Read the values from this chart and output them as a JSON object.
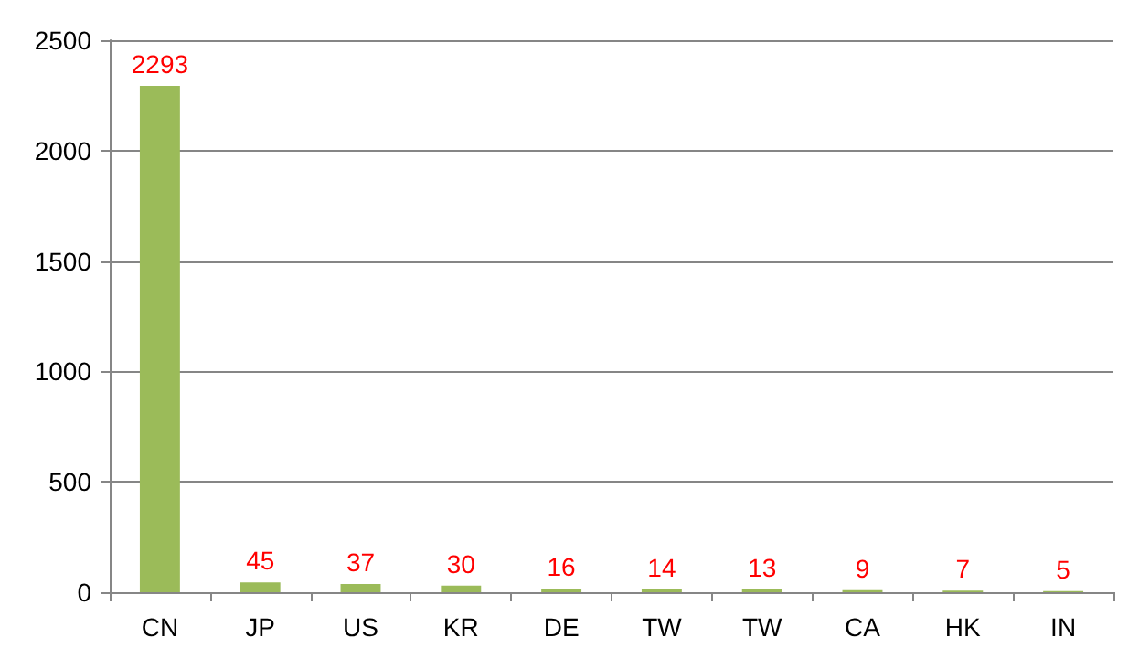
{
  "chart_data": {
    "type": "bar",
    "categories": [
      "CN",
      "JP",
      "US",
      "KR",
      "DE",
      "TW",
      "TW",
      "CA",
      "HK",
      "IN"
    ],
    "values": [
      2293,
      45,
      37,
      30,
      16,
      14,
      13,
      9,
      7,
      5
    ],
    "color": "#9bbb59",
    "ylim": [
      0,
      2500
    ],
    "yticks": [
      0,
      500,
      1000,
      1500,
      2000,
      2500
    ],
    "grid": "y",
    "data_labels": true
  }
}
